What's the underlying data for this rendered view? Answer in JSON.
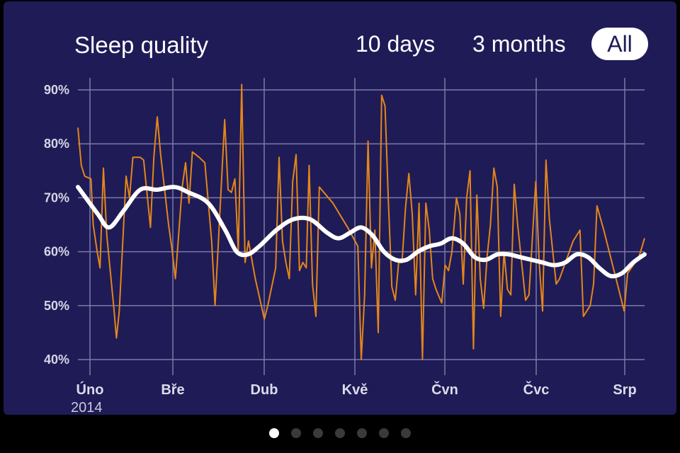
{
  "header": {
    "title": "Sleep quality",
    "ranges": [
      "10 days",
      "3 months",
      "All"
    ],
    "selected_range": "All"
  },
  "pager": {
    "count": 7,
    "active": 0
  },
  "colors": {
    "background": "#1f1b56",
    "raw_line": "#e3861a",
    "smooth_line": "#ffffff",
    "grid": "#7b7aa6"
  },
  "chart_data": {
    "type": "line",
    "title": "Sleep quality",
    "xlabel": "",
    "ylabel": "",
    "ylim": [
      40,
      90
    ],
    "yticks": [
      "40%",
      "50%",
      "60%",
      "70%",
      "80%",
      "90%"
    ],
    "xticks": [
      "Úno",
      "Bře",
      "Dub",
      "Kvě",
      "Čvn",
      "Čvc",
      "Srp"
    ],
    "year_label": "2014",
    "grid": true,
    "legend": "none",
    "series": [
      {
        "key": "raw",
        "points": [
          [
            0.0,
            83
          ],
          [
            0.6,
            76
          ],
          [
            1.2,
            74
          ],
          [
            2.3,
            73.5
          ],
          [
            2.7,
            65
          ],
          [
            3.4,
            60
          ],
          [
            3.9,
            57
          ],
          [
            4.5,
            75.5
          ],
          [
            5.1,
            63
          ],
          [
            6.3,
            50
          ],
          [
            6.8,
            44
          ],
          [
            7.3,
            49
          ],
          [
            8.5,
            74
          ],
          [
            9.1,
            70
          ],
          [
            9.7,
            77.5
          ],
          [
            11.0,
            77.5
          ],
          [
            11.6,
            77
          ],
          [
            12.8,
            64.5
          ],
          [
            13.4,
            77.5
          ],
          [
            14.0,
            85
          ],
          [
            14.6,
            78
          ],
          [
            16.0,
            65
          ],
          [
            16.6,
            60.5
          ],
          [
            17.2,
            55
          ],
          [
            18.4,
            72
          ],
          [
            19.0,
            76.5
          ],
          [
            19.6,
            69
          ],
          [
            20.2,
            78.5
          ],
          [
            21.4,
            77.5
          ],
          [
            22.4,
            76.5
          ],
          [
            23.6,
            62
          ],
          [
            24.2,
            50
          ],
          [
            24.7,
            60
          ],
          [
            25.9,
            84.5
          ],
          [
            26.5,
            71.5
          ],
          [
            27.1,
            71
          ],
          [
            27.7,
            73.5
          ],
          [
            28.3,
            60
          ],
          [
            28.9,
            91
          ],
          [
            29.5,
            58
          ],
          [
            30.1,
            62
          ],
          [
            31.3,
            55
          ],
          [
            32.9,
            47.5
          ],
          [
            33.5,
            50
          ],
          [
            34.9,
            57
          ],
          [
            35.5,
            77.5
          ],
          [
            36.1,
            62
          ],
          [
            36.7,
            58
          ],
          [
            37.3,
            55
          ],
          [
            37.9,
            73
          ],
          [
            38.5,
            78
          ],
          [
            39.1,
            56.5
          ],
          [
            39.7,
            58
          ],
          [
            40.3,
            57
          ],
          [
            40.8,
            76
          ],
          [
            41.4,
            54
          ],
          [
            42.0,
            48
          ],
          [
            42.6,
            72
          ],
          [
            45.0,
            69
          ],
          [
            47.6,
            64.5
          ],
          [
            49.4,
            61
          ],
          [
            50.0,
            40
          ],
          [
            50.6,
            52
          ],
          [
            51.2,
            80.5
          ],
          [
            51.8,
            57
          ],
          [
            52.4,
            64
          ],
          [
            53.0,
            45
          ],
          [
            53.6,
            89
          ],
          [
            54.2,
            87
          ],
          [
            54.8,
            69
          ],
          [
            55.4,
            53.5
          ],
          [
            56.0,
            51
          ],
          [
            56.6,
            58
          ],
          [
            57.2,
            58
          ],
          [
            57.8,
            68
          ],
          [
            58.4,
            74.5
          ],
          [
            59.0,
            67
          ],
          [
            59.6,
            52
          ],
          [
            60.2,
            69
          ],
          [
            60.8,
            40
          ],
          [
            61.4,
            69
          ],
          [
            62.0,
            64
          ],
          [
            62.6,
            55
          ],
          [
            63.2,
            53
          ],
          [
            64.2,
            50.5
          ],
          [
            64.8,
            57.5
          ],
          [
            65.4,
            56.5
          ],
          [
            66.0,
            60
          ],
          [
            66.8,
            70
          ],
          [
            67.4,
            67
          ],
          [
            68.0,
            54
          ],
          [
            68.6,
            70
          ],
          [
            69.2,
            75
          ],
          [
            69.8,
            42
          ],
          [
            70.4,
            70.5
          ],
          [
            71.0,
            55
          ],
          [
            71.6,
            49.5
          ],
          [
            72.2,
            59
          ],
          [
            72.8,
            65
          ],
          [
            73.4,
            75.5
          ],
          [
            74.0,
            72
          ],
          [
            74.6,
            48
          ],
          [
            75.2,
            60
          ],
          [
            75.8,
            53
          ],
          [
            76.4,
            52
          ],
          [
            77.0,
            72.5
          ],
          [
            77.6,
            65
          ],
          [
            79.0,
            51
          ],
          [
            79.6,
            52
          ],
          [
            80.8,
            73
          ],
          [
            81.4,
            58
          ],
          [
            82.0,
            49
          ],
          [
            82.6,
            77
          ],
          [
            83.2,
            66
          ],
          [
            84.4,
            54
          ],
          [
            85.0,
            55
          ],
          [
            87.4,
            62
          ],
          [
            88.6,
            64
          ],
          [
            89.2,
            48
          ],
          [
            90.4,
            50
          ],
          [
            91.0,
            54
          ],
          [
            91.6,
            68.5
          ],
          [
            92.8,
            64
          ],
          [
            96.4,
            49
          ],
          [
            97.0,
            56
          ],
          [
            99.0,
            59
          ],
          [
            100.0,
            62.5
          ]
        ]
      },
      {
        "key": "smooth",
        "points": [
          [
            0,
            72
          ],
          [
            3.5,
            67
          ],
          [
            5.5,
            64.5
          ],
          [
            8,
            67.5
          ],
          [
            11,
            71.5
          ],
          [
            14,
            71.5
          ],
          [
            17,
            72
          ],
          [
            19.5,
            71
          ],
          [
            23,
            69
          ],
          [
            26,
            64
          ],
          [
            28,
            60
          ],
          [
            30,
            59.5
          ],
          [
            32,
            61
          ],
          [
            35,
            64
          ],
          [
            38,
            66
          ],
          [
            41,
            66
          ],
          [
            44,
            63.5
          ],
          [
            46,
            62.5
          ],
          [
            48,
            63.5
          ],
          [
            50,
            64.5
          ],
          [
            52,
            63
          ],
          [
            54,
            60
          ],
          [
            56,
            58.5
          ],
          [
            58,
            58.5
          ],
          [
            60,
            60
          ],
          [
            62,
            61
          ],
          [
            64,
            61.5
          ],
          [
            66,
            62.5
          ],
          [
            68,
            61.5
          ],
          [
            70,
            59
          ],
          [
            72,
            58.5
          ],
          [
            74,
            59.5
          ],
          [
            76,
            59.5
          ],
          [
            78,
            59
          ],
          [
            80,
            58.5
          ],
          [
            82,
            58
          ],
          [
            84,
            57.5
          ],
          [
            86,
            58
          ],
          [
            88,
            59.5
          ],
          [
            90,
            59
          ],
          [
            92,
            57
          ],
          [
            94,
            55.5
          ],
          [
            96,
            56
          ],
          [
            98,
            58
          ],
          [
            100,
            59.5
          ]
        ]
      }
    ]
  }
}
